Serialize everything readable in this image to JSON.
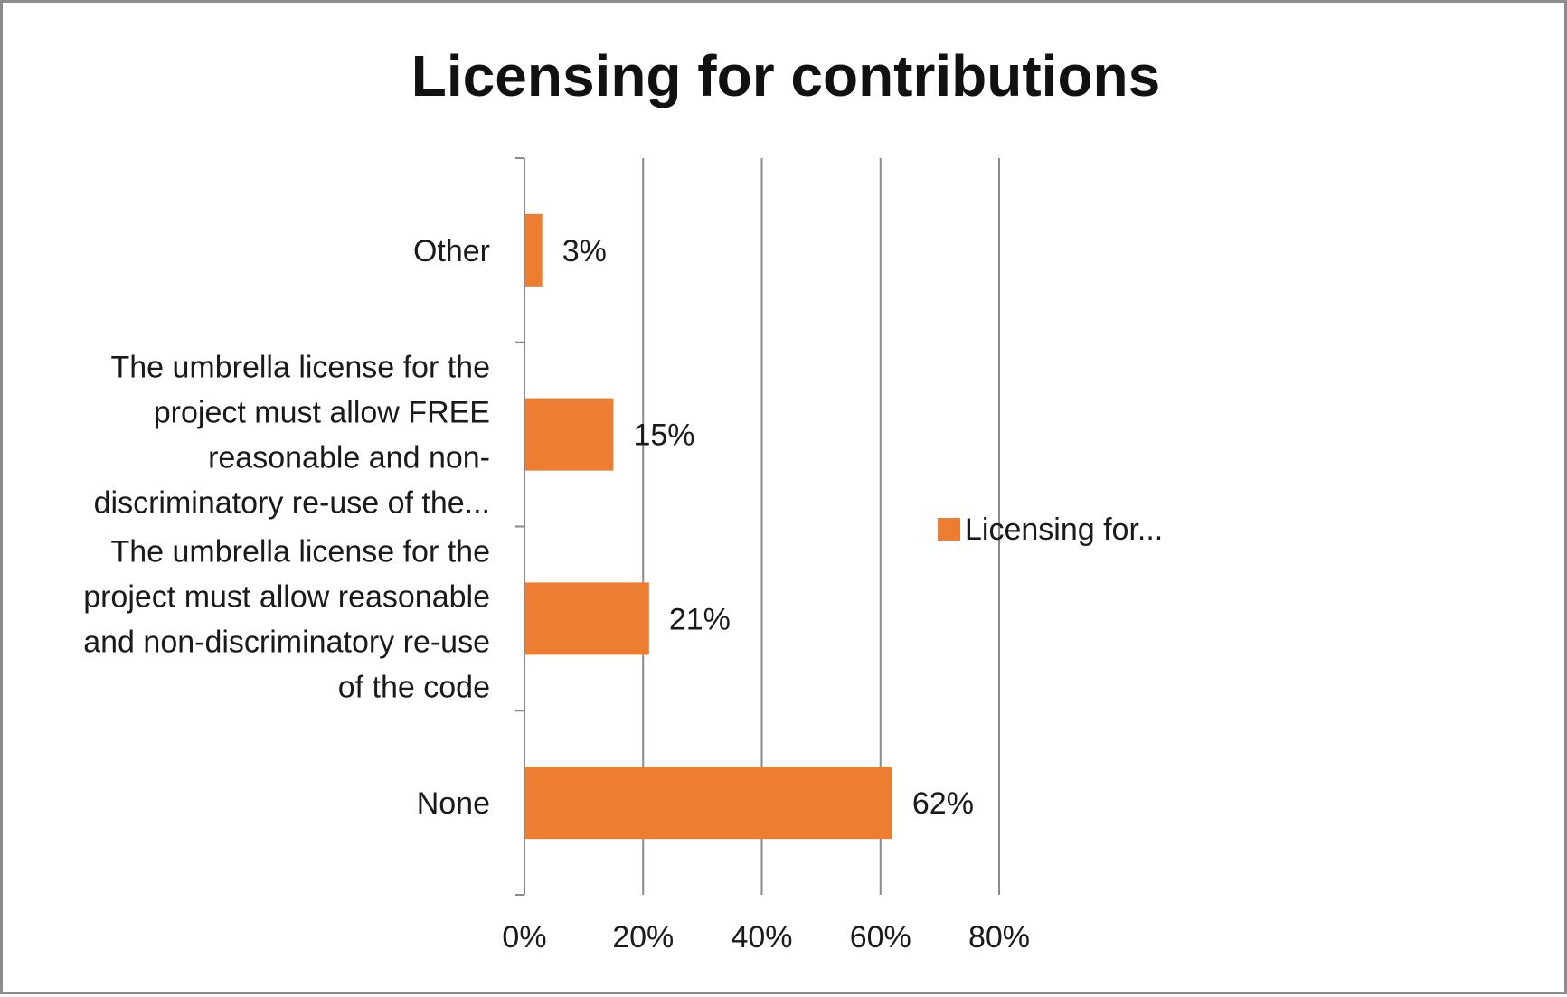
{
  "chart_data": {
    "type": "bar",
    "orientation": "horizontal",
    "title": "Licensing for contributions",
    "xlabel": "",
    "ylabel": "",
    "categories": [
      "None",
      "The umbrella license for the project must allow reasonable and non-discriminatory re-use of the code",
      "The umbrella license for the project must allow FREE reasonable and non-discriminatory re-use of the...",
      "Other"
    ],
    "category_lines": [
      [
        "None"
      ],
      [
        "The umbrella license for the",
        "project must allow reasonable",
        "and non-discriminatory re-use",
        "of the code"
      ],
      [
        "The umbrella license for the",
        "project must allow FREE",
        "reasonable and non-",
        "discriminatory re-use of the..."
      ],
      [
        "Other"
      ]
    ],
    "series": [
      {
        "name": "Licensing for...",
        "values": [
          62,
          21,
          15,
          3
        ],
        "color": "#ED7D31"
      }
    ],
    "data_labels": [
      "62%",
      "21%",
      "15%",
      "3%"
    ],
    "xlim": [
      0,
      80
    ],
    "xticks": [
      0,
      20,
      40,
      60,
      80
    ],
    "xtick_labels": [
      "0%",
      "20%",
      "40%",
      "60%",
      "80%"
    ],
    "grid": "vertical major gridlines",
    "legend": "right"
  }
}
